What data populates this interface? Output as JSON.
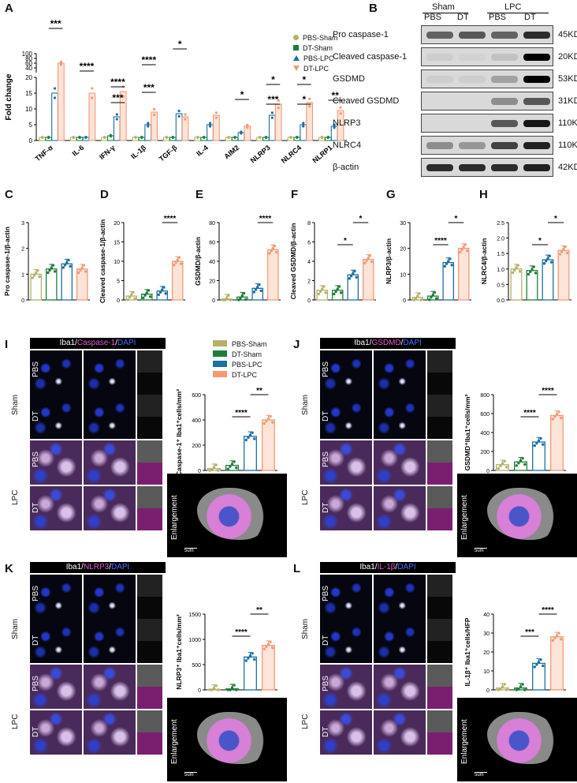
{
  "panels": {
    "A": "A",
    "B": "B",
    "C": "C",
    "D": "D",
    "E": "E",
    "F": "F",
    "G": "G",
    "H": "H",
    "I": "I",
    "J": "J",
    "K": "K",
    "L": "L"
  },
  "colors": {
    "pbs_sham": "#b5b06a",
    "dt_sham": "#1e7d3a",
    "pbs_lpc": "#1b6fa3",
    "dt_lpc": "#f29a78"
  },
  "legend_top": [
    "PBS-Sham",
    "DT-Sham",
    "PBS-LPC",
    "DT-LPC"
  ],
  "legend_mid": [
    "PBS-Sham",
    "DT-Sham",
    "PBS-LPC",
    "DT-LPC"
  ],
  "chart_data": [
    {
      "id": "A",
      "type": "bar",
      "ylabel": "Fold change",
      "categories": [
        "TNF-α",
        "IL-6",
        "IFN-γ",
        "IL-1β",
        "TGF-β",
        "IL-4",
        "AIM2",
        "NLRP3",
        "NLRC4",
        "NLRP1"
      ],
      "series": [
        {
          "name": "PBS-Sham",
          "values": [
            1,
            1,
            1,
            1,
            1,
            1,
            1,
            1,
            1,
            1
          ]
        },
        {
          "name": "DT-Sham",
          "values": [
            1,
            1,
            1.5,
            1,
            1,
            1,
            1,
            1,
            1,
            1
          ]
        },
        {
          "name": "PBS-LPC",
          "values": [
            15,
            1,
            7.5,
            5,
            8.5,
            5,
            2.5,
            8,
            5,
            4.5
          ]
        },
        {
          "name": "DT-LPC",
          "values": [
            60,
            15,
            15.5,
            9,
            7.5,
            8,
            4.5,
            11.5,
            12,
            9.5
          ]
        }
      ],
      "yticks_low": [
        "0",
        "5",
        "10",
        "15",
        "20"
      ],
      "yticks_high": [
        "20",
        "40",
        "60",
        "80",
        "100"
      ],
      "sig": [
        "***",
        "****",
        "***",
        "****",
        "*",
        "***",
        "****",
        "*",
        "***",
        "*",
        "*",
        "*",
        "**"
      ]
    },
    {
      "id": "C",
      "type": "bar",
      "ylabel": "Pro caspase-1/β-actin",
      "categories": [
        "PBS-Sham",
        "DT-Sham",
        "PBS-LPC",
        "DT-LPC"
      ],
      "values": [
        1.0,
        1.2,
        1.4,
        1.2
      ],
      "ylim": [
        0,
        3
      ],
      "yticks": [
        "0",
        "1",
        "2",
        "3"
      ],
      "sig": []
    },
    {
      "id": "D",
      "type": "bar",
      "ylabel": "Cleaved caspase-1/β-actin",
      "categories": [
        "PBS-Sham",
        "DT-Sham",
        "PBS-LPC",
        "DT-LPC"
      ],
      "values": [
        1.0,
        1.5,
        2.3,
        10.0
      ],
      "ylim": [
        0,
        20
      ],
      "yticks": [
        "0",
        "5",
        "10",
        "15",
        "20"
      ],
      "sig": [
        "****"
      ]
    },
    {
      "id": "E",
      "type": "bar",
      "ylabel": "GSDMD/β-actin",
      "categories": [
        "PBS-Sham",
        "DT-Sham",
        "PBS-LPC",
        "DT-LPC"
      ],
      "values": [
        1.0,
        3.0,
        12.0,
        52.0
      ],
      "ylim": [
        0,
        80
      ],
      "yticks": [
        "0",
        "20",
        "40",
        "60",
        "80"
      ],
      "sig": [
        "****"
      ]
    },
    {
      "id": "F",
      "type": "bar",
      "ylabel": "Cleaved GSDMD/β-actin",
      "categories": [
        "PBS-Sham",
        "DT-Sham",
        "PBS-LPC",
        "DT-LPC"
      ],
      "values": [
        1.0,
        1.0,
        2.6,
        4.2
      ],
      "ylim": [
        0,
        8
      ],
      "yticks": [
        "0",
        "2",
        "4",
        "6",
        "8"
      ],
      "sig": [
        "*",
        "*"
      ]
    },
    {
      "id": "G",
      "type": "bar",
      "ylabel": "NLRP3/β-actin",
      "categories": [
        "PBS-Sham",
        "DT-Sham",
        "PBS-LPC",
        "DT-LPC"
      ],
      "values": [
        1.0,
        1.5,
        14.5,
        20.0
      ],
      "ylim": [
        0,
        30
      ],
      "yticks": [
        "0",
        "10",
        "20",
        "30"
      ],
      "sig": [
        "****",
        "*"
      ]
    },
    {
      "id": "H",
      "type": "bar",
      "ylabel": "NLRC4/β-actin",
      "categories": [
        "PBS-Sham",
        "DT-Sham",
        "PBS-LPC",
        "DT-LPC"
      ],
      "values": [
        1.0,
        0.95,
        1.3,
        1.6
      ],
      "ylim": [
        0,
        2.5
      ],
      "yticks": [
        "0.0",
        "0.5",
        "1.0",
        "1.5",
        "2.0",
        "2.5"
      ],
      "sig": [
        "*",
        "*"
      ]
    },
    {
      "id": "I",
      "type": "bar",
      "ylabel": "Caspase-1⁺ Iba1⁺cells/mm²",
      "categories": [
        "PBS-Sham",
        "DT-Sham",
        "PBS-LPC",
        "DT-LPC"
      ],
      "values": [
        15,
        40,
        270,
        400
      ],
      "ylim": [
        0,
        600
      ],
      "yticks": [
        "0",
        "200",
        "400",
        "600"
      ],
      "sig": [
        "****",
        "**"
      ]
    },
    {
      "id": "J",
      "type": "bar",
      "ylabel": "GSDMD⁺Iba1⁺cells/mm²",
      "categories": [
        "PBS-Sham",
        "DT-Sham",
        "PBS-LPC",
        "DT-LPC"
      ],
      "values": [
        60,
        90,
        300,
        580
      ],
      "ylim": [
        0,
        800
      ],
      "yticks": [
        "0",
        "200",
        "400",
        "600",
        "800"
      ],
      "sig": [
        "****",
        "****"
      ]
    },
    {
      "id": "K",
      "type": "bar",
      "ylabel": "NLRP3⁺ Iba1⁺cells/mm²",
      "categories": [
        "PBS-Sham",
        "DT-Sham",
        "PBS-LPC",
        "DT-LPC"
      ],
      "values": [
        10,
        20,
        650,
        880
      ],
      "ylim": [
        0,
        1500
      ],
      "yticks": [
        "0",
        "500",
        "1000",
        "1500"
      ],
      "sig": [
        "****",
        "**"
      ]
    },
    {
      "id": "L",
      "type": "bar",
      "ylabel": "IL-1β⁺ Iba1⁺cells/HFP",
      "categories": [
        "PBS-Sham",
        "DT-Sham",
        "PBS-LPC",
        "DT-LPC"
      ],
      "values": [
        1,
        1,
        14,
        28
      ],
      "ylim": [
        0,
        40
      ],
      "yticks": [
        "0",
        "10",
        "20",
        "30",
        "40"
      ],
      "sig": [
        "***",
        "****"
      ]
    }
  ],
  "blot": {
    "groups": [
      "Sham",
      "LPC"
    ],
    "lanes": [
      "PBS",
      "DT",
      "PBS",
      "DT"
    ],
    "rows": [
      {
        "label": "Pro caspase-1",
        "kd": "45KD"
      },
      {
        "label": "Cleaved caspase-1",
        "kd": "20KD"
      },
      {
        "label": "GSDMD",
        "kd": "53KD"
      },
      {
        "label": "Cleaved GSDMD",
        "kd": "31KD"
      },
      {
        "label": "NLRP3",
        "kd": "110KD"
      },
      {
        "label": "NLRC4",
        "kd": "110KD"
      },
      {
        "label": "β-actin",
        "kd": "42KD"
      }
    ]
  },
  "micro": {
    "I": {
      "title": [
        "Iba1",
        "/",
        "Caspase-1",
        "/",
        "DAPI"
      ],
      "colors": [
        "#fff",
        "#fff",
        "#e85bd0",
        "#fff",
        "#4d6dff"
      ]
    },
    "J": {
      "title": [
        "Iba1",
        "/",
        "GSDMD",
        "/",
        "DAPI"
      ],
      "colors": [
        "#fff",
        "#fff",
        "#e85bd0",
        "#fff",
        "#4d6dff"
      ]
    },
    "K": {
      "title": [
        "Iba1",
        "/",
        "NLRP3",
        "/",
        "DAPI"
      ],
      "colors": [
        "#fff",
        "#fff",
        "#e85bd0",
        "#fff",
        "#4d6dff"
      ]
    },
    "L": {
      "title": [
        "Iba1",
        "/",
        "IL-1β",
        "/",
        "DAPI"
      ],
      "colors": [
        "#fff",
        "#fff",
        "#e85bd0",
        "#fff",
        "#4d6dff"
      ]
    }
  },
  "micro_labels": {
    "sham": "Sham",
    "lpc": "LPC",
    "pbs": "PBS",
    "dt": "DT",
    "enlargement": "Enlargement",
    "scale": "5um"
  }
}
